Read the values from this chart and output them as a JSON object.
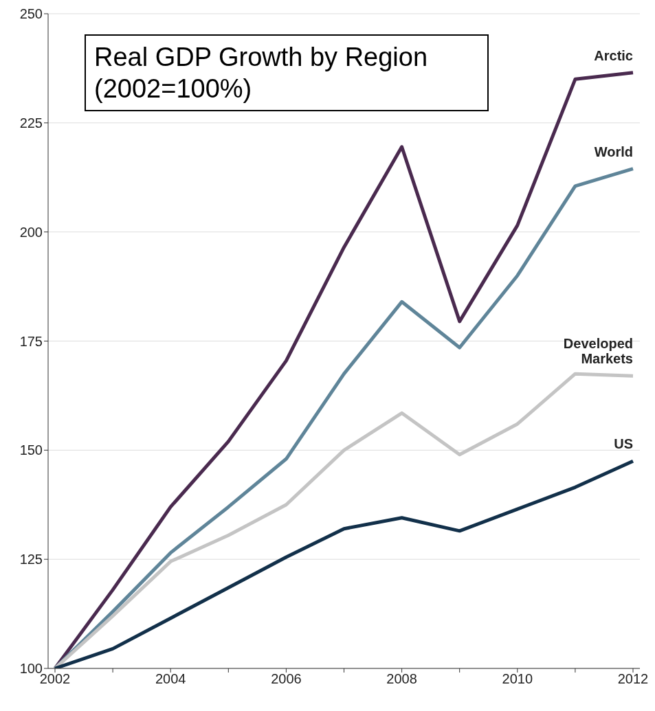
{
  "chart_data": {
    "type": "line",
    "title": "Real GDP Growth by Region (2002=100%)",
    "categories": [
      "2002",
      null,
      "2004",
      null,
      "2006",
      null,
      "2008",
      null,
      "2010",
      null,
      "2012"
    ],
    "series": [
      {
        "name": "Arctic",
        "color": "#4a2a4f",
        "values": [
          100,
          118,
          137,
          152,
          170.5,
          196.5,
          219.5,
          179.5,
          201.5,
          235,
          236.5
        ]
      },
      {
        "name": "World",
        "color": "#5f8599",
        "values": [
          100,
          113,
          126.5,
          137,
          148,
          167.5,
          184,
          173.5,
          190,
          210.5,
          214.5
        ]
      },
      {
        "name": "Developed Markets",
        "color": "#c4c4c4",
        "values": [
          100,
          112,
          124.5,
          130.5,
          137.5,
          150,
          158.5,
          149,
          156,
          167.5,
          167
        ]
      },
      {
        "name": "US",
        "color": "#12304a",
        "values": [
          100,
          104.5,
          111.5,
          118.5,
          125.5,
          132,
          134.5,
          131.5,
          136.5,
          141.5,
          147.5
        ]
      }
    ],
    "ylim": [
      100,
      250
    ],
    "yticks": [
      100,
      125,
      150,
      175,
      200,
      225,
      250
    ],
    "grid": "y",
    "legend": false,
    "marker": "none",
    "line_style": "solid"
  }
}
